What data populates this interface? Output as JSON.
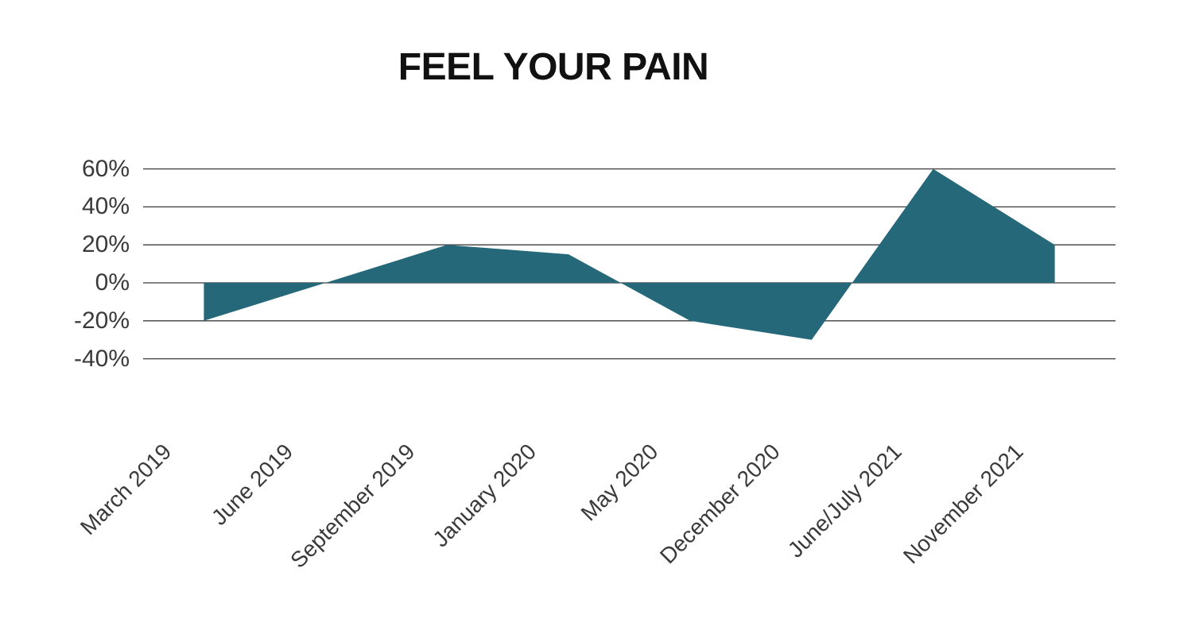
{
  "page": {
    "background": "#ffffff"
  },
  "chart_data": {
    "type": "area",
    "title": "FEEL YOUR PAIN",
    "categories": [
      "March 2019",
      "June 2019",
      "September 2019",
      "January 2020",
      "May 2020",
      "December 2020",
      "June/July 2021",
      "November 2021"
    ],
    "values": [
      -20,
      0,
      20,
      15,
      -20,
      -30,
      60,
      20
    ],
    "unit": "%",
    "xlabel": "",
    "ylabel": "",
    "y_ticks": [
      60,
      40,
      20,
      0,
      -20,
      -40
    ],
    "y_tick_labels": [
      "60%",
      "40%",
      "20%",
      "0%",
      "-20%",
      "-40%"
    ],
    "ylim": [
      -40,
      60
    ],
    "baseline": 0,
    "grid": true,
    "legend": false,
    "x_label_rotation_deg": -45,
    "colors": {
      "area_fill": "#256879",
      "gridline": "#3b3b3b",
      "axis_text": "#3a3a3a",
      "title_text": "#111111"
    }
  }
}
